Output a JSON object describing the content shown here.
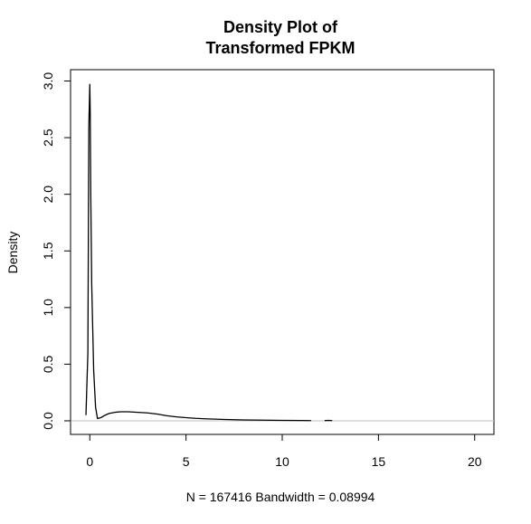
{
  "chart_data": {
    "type": "line",
    "title_line1": "Density Plot of",
    "title_line2": "Transformed FPKM",
    "xlabel": "N = 167416   Bandwidth = 0.08994",
    "ylabel": "Density",
    "xlim": [
      -1.0,
      21.0
    ],
    "ylim": [
      -0.12,
      3.1
    ],
    "x_ticks": [
      0,
      5,
      10,
      15,
      20
    ],
    "x_tick_labels": [
      "0",
      "5",
      "10",
      "15",
      "20"
    ],
    "y_ticks": [
      0.0,
      0.5,
      1.0,
      1.5,
      2.0,
      2.5,
      3.0
    ],
    "y_tick_labels": [
      "0.0",
      "0.5",
      "1.0",
      "1.5",
      "2.0",
      "2.5",
      "3.0"
    ],
    "baseline_y": 0,
    "baseline_color": "#bebebe",
    "line_color": "#000000",
    "series": [
      {
        "x": [
          -0.2,
          -0.1,
          -0.05,
          0.0,
          0.02,
          0.05,
          0.1,
          0.2,
          0.3,
          0.4,
          0.6,
          0.8,
          1.0,
          1.3,
          1.6,
          2.0,
          2.5,
          3.0,
          3.5,
          4.0,
          4.5,
          5.0,
          5.5,
          6.0,
          7.0,
          8.0,
          9.0,
          10.0,
          11.0,
          11.5
        ],
        "y": [
          0.05,
          0.6,
          2.6,
          2.97,
          2.75,
          2.0,
          1.2,
          0.45,
          0.12,
          0.02,
          0.03,
          0.05,
          0.065,
          0.075,
          0.08,
          0.08,
          0.075,
          0.07,
          0.06,
          0.045,
          0.035,
          0.028,
          0.022,
          0.018,
          0.012,
          0.008,
          0.006,
          0.004,
          0.003,
          0.002
        ]
      },
      {
        "x": [
          12.2,
          12.4,
          12.6
        ],
        "y": [
          0.002,
          0.004,
          0.002
        ]
      }
    ]
  }
}
